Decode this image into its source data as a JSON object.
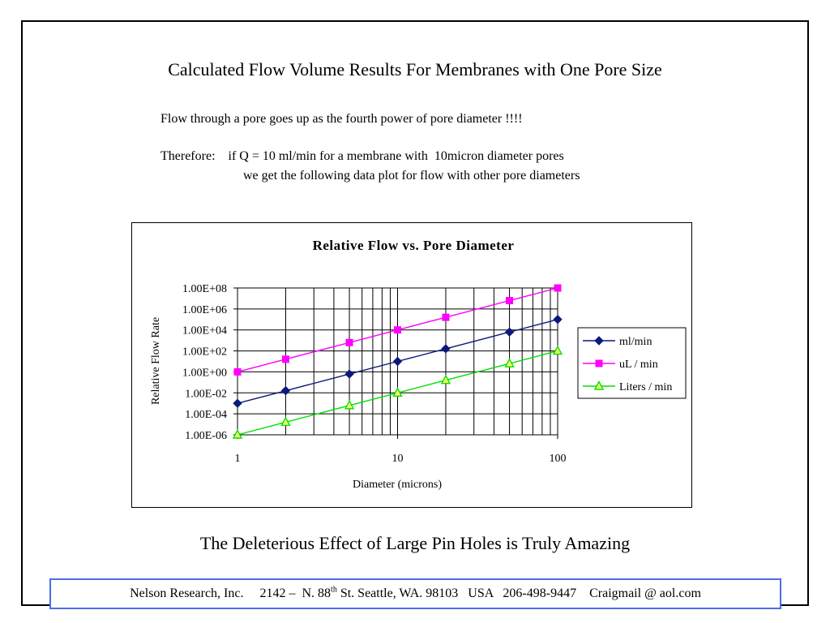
{
  "slide": {
    "title": "Calculated Flow Volume Results For Membranes with One Pore Size",
    "line1": "Flow through a pore goes up as the fourth power of pore diameter !!!!",
    "line2": "Therefore:    if Q = 10 ml/min for a membrane with  10micron diameter pores",
    "line3": "we get the following data plot for flow with other pore diameters",
    "tagline": "The Deleterious Effect of Large Pin Holes is Truly Amazing"
  },
  "footer": {
    "before_sup": "Nelson Research, Inc.     2142 –  N. 88",
    "sup": "th",
    "after_sup": " St. Seattle, WA. 98103   USA   206-498-9447    Craigmail @ aol.com"
  },
  "chart_data": {
    "type": "line",
    "title": "Relative Flow vs. Pore Diameter",
    "xlabel": "Diameter (microns)",
    "ylabel": "Relative Flow Rate",
    "x_scale": "log",
    "y_scale": "log",
    "xlim": [
      1,
      100
    ],
    "ylim": [
      1e-06,
      100000000.0
    ],
    "x_ticks": [
      1,
      10,
      100
    ],
    "x_tick_labels": [
      "1",
      "10",
      "100"
    ],
    "y_ticks": [
      1e-06,
      0.0001,
      0.01,
      1,
      100.0,
      10000.0,
      1000000.0,
      100000000.0
    ],
    "y_tick_labels": [
      "1.00E-06",
      "1.00E-04",
      "1.00E-02",
      "1.00E+00",
      "1.00E+02",
      "1.00E+04",
      "1.00E+06",
      "1.00E+08"
    ],
    "grid": true,
    "legend_position": "right",
    "x": [
      1,
      2,
      5,
      10,
      20,
      50,
      100
    ],
    "series": [
      {
        "name": "ml/min",
        "color": "#0a1a7a",
        "marker": "diamond",
        "values": [
          0.001,
          0.016,
          0.625,
          10,
          160,
          6250,
          100000
        ]
      },
      {
        "name": "uL / min",
        "color": "#ff00ff",
        "marker": "square",
        "values": [
          1,
          16,
          625,
          10000,
          160000,
          6250000,
          100000000
        ]
      },
      {
        "name": "Liters / min",
        "color": "#00e000",
        "marker": "triangle",
        "values": [
          1e-06,
          1.6e-05,
          0.000625,
          0.01,
          0.16,
          6.25,
          100
        ]
      }
    ]
  }
}
